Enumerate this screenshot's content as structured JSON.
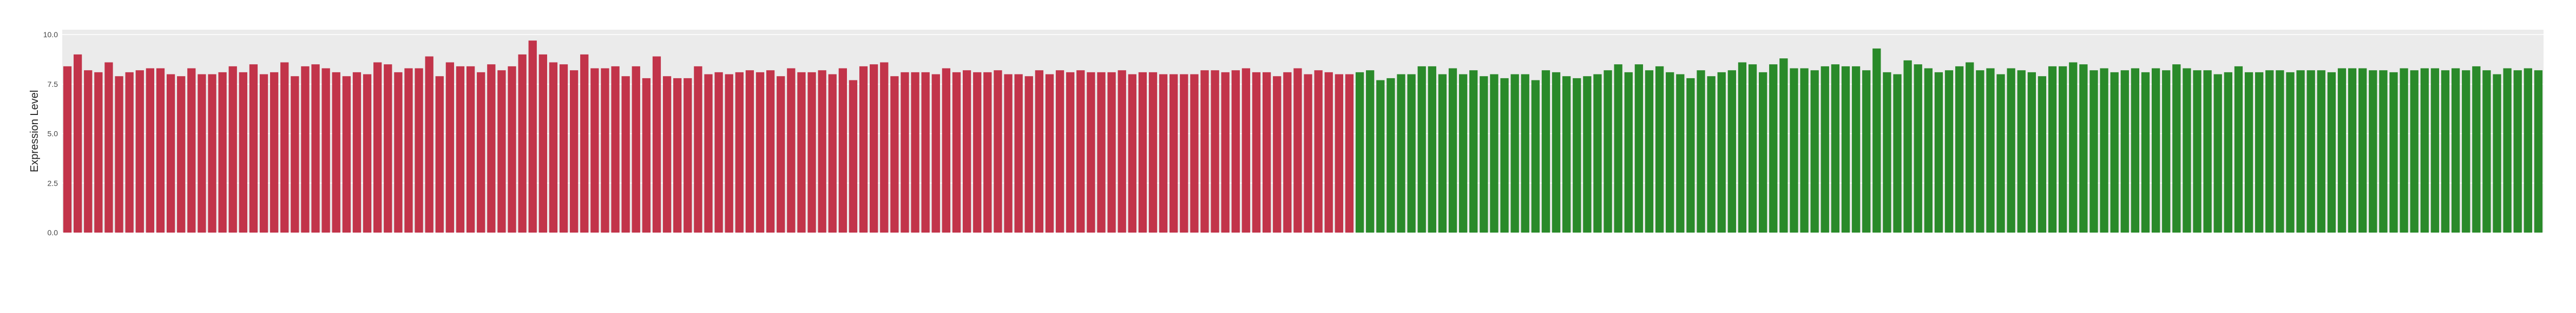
{
  "chart_data": {
    "type": "bar",
    "y_label": "Expression Level",
    "categories": [
      null,
      null,
      null,
      null,
      null,
      null,
      null,
      null,
      null,
      null,
      null,
      null,
      null,
      null,
      null,
      null,
      null,
      null,
      null,
      null,
      null,
      null,
      null,
      null,
      null,
      null,
      null,
      null,
      null,
      null,
      null,
      null,
      null,
      null,
      null,
      null,
      null,
      null,
      null,
      null,
      null,
      null,
      null,
      null,
      null,
      null,
      null,
      null,
      null,
      null,
      null,
      null,
      null,
      null,
      null,
      null,
      null,
      null,
      null,
      null,
      null,
      null,
      null,
      null,
      null,
      null,
      null,
      null,
      null,
      null,
      null,
      null,
      null,
      null,
      null,
      null,
      null,
      null,
      null,
      null,
      null,
      null,
      null,
      null,
      null,
      null,
      null,
      null,
      null,
      null,
      null,
      null,
      null,
      null,
      null,
      null,
      null,
      null,
      null,
      null,
      null,
      null,
      null,
      null,
      null,
      null,
      null,
      null,
      null,
      null,
      null,
      null,
      null,
      null,
      null,
      null,
      null,
      null,
      null,
      null,
      null,
      null,
      null,
      null,
      null,
      null,
      null,
      null,
      null,
      null,
      null,
      null,
      null,
      null,
      null,
      null,
      null,
      null,
      null,
      null,
      null,
      null,
      null,
      null,
      null,
      null,
      null,
      null,
      null,
      null,
      null,
      null,
      null,
      null,
      null,
      null,
      null,
      null,
      null,
      null,
      null,
      null,
      null,
      null,
      null,
      null,
      null,
      null,
      null,
      null,
      null,
      null,
      null,
      null,
      null,
      null,
      null,
      null,
      null,
      null,
      null,
      null,
      null,
      null,
      null,
      null,
      null,
      null,
      null,
      null,
      null,
      null,
      null,
      null,
      null,
      null,
      null,
      null,
      null,
      null,
      null,
      null,
      null,
      null,
      null,
      null,
      null,
      null,
      null,
      null,
      null,
      null,
      null,
      null,
      null,
      null,
      null,
      null,
      null,
      null,
      null,
      null,
      null,
      null,
      null,
      null,
      null,
      null,
      null,
      null,
      null,
      null,
      null,
      null,
      null,
      null,
      null,
      null,
      null,
      null
    ],
    "values": [
      8.4,
      9.0,
      8.2,
      8.1,
      8.6,
      7.9,
      8.1,
      8.2,
      8.3,
      8.3,
      8.0,
      7.9,
      8.3,
      8.0,
      8.0,
      8.1,
      8.4,
      8.1,
      8.5,
      8.0,
      8.1,
      8.6,
      7.9,
      8.4,
      8.5,
      8.3,
      8.1,
      7.9,
      8.1,
      8.0,
      8.6,
      8.5,
      8.1,
      8.3,
      8.3,
      8.9,
      7.9,
      8.6,
      8.4,
      8.4,
      8.1,
      8.5,
      8.2,
      8.4,
      9.0,
      9.7,
      9.0,
      8.6,
      8.5,
      8.2,
      9.0,
      8.3,
      8.3,
      8.4,
      7.9,
      8.4,
      7.8,
      8.9,
      7.9,
      7.8,
      7.8,
      8.4,
      8.0,
      8.1,
      8.0,
      8.1,
      8.2,
      8.1,
      8.2,
      7.9,
      8.3,
      8.1,
      8.1,
      8.2,
      8.0,
      8.3,
      7.7,
      8.4,
      8.5,
      8.6,
      7.9,
      8.1,
      8.1,
      8.1,
      8.0,
      8.3,
      8.1,
      8.2,
      8.1,
      8.1,
      8.2,
      8.0,
      8.0,
      7.9,
      8.2,
      8.0,
      8.2,
      8.1,
      8.2,
      8.1,
      8.1,
      8.1,
      8.2,
      8.0,
      8.1,
      8.1,
      8.0,
      8.0,
      8.0,
      8.0,
      8.2,
      8.2,
      8.1,
      8.2,
      8.3,
      8.1,
      8.1,
      7.9,
      8.1,
      8.3,
      8.0,
      8.2,
      8.1,
      8.0,
      8.0,
      8.1,
      8.2,
      7.7,
      7.8,
      8.0,
      8.0,
      8.4,
      8.4,
      8.0,
      8.3,
      8.0,
      8.2,
      7.9,
      8.0,
      7.8,
      8.0,
      8.0,
      7.7,
      8.2,
      8.1,
      7.9,
      7.8,
      7.9,
      8.0,
      8.2,
      8.5,
      8.1,
      8.5,
      8.2,
      8.4,
      8.1,
      8.0,
      7.8,
      8.2,
      7.9,
      8.1,
      8.2,
      8.6,
      8.5,
      8.1,
      8.5,
      8.8,
      8.3,
      8.3,
      8.2,
      8.4,
      8.5,
      8.4,
      8.4,
      8.2,
      9.3,
      8.1,
      8.0,
      8.7,
      8.5,
      8.3,
      8.1,
      8.2,
      8.4,
      8.6,
      8.2,
      8.3,
      8.0,
      8.3,
      8.2,
      8.1,
      7.9,
      8.4,
      8.4,
      8.6,
      8.5,
      8.2,
      8.3,
      8.1,
      8.2,
      8.3,
      8.1,
      8.3,
      8.2,
      8.5,
      8.3,
      8.2,
      8.2,
      8.0,
      8.1,
      8.4,
      8.1,
      8.1,
      8.2,
      8.2,
      8.1,
      8.2,
      8.2,
      8.2,
      8.1,
      8.3,
      8.3,
      8.3,
      8.2,
      8.2,
      8.1,
      8.3,
      8.2,
      8.3,
      8.3,
      8.2,
      8.3,
      8.2,
      8.4,
      8.2,
      8.0,
      8.3,
      8.2,
      8.3,
      8.2
    ],
    "colors": [
      "#c2344a",
      "#c2344a",
      "#c2344a",
      "#c2344a",
      "#c2344a",
      "#c2344a",
      "#c2344a",
      "#c2344a",
      "#c2344a",
      "#c2344a",
      "#c2344a",
      "#c2344a",
      "#c2344a",
      "#c2344a",
      "#c2344a",
      "#c2344a",
      "#c2344a",
      "#c2344a",
      "#c2344a",
      "#c2344a",
      "#c2344a",
      "#c2344a",
      "#c2344a",
      "#c2344a",
      "#c2344a",
      "#c2344a",
      "#c2344a",
      "#c2344a",
      "#c2344a",
      "#c2344a",
      "#c2344a",
      "#c2344a",
      "#c2344a",
      "#c2344a",
      "#c2344a",
      "#c2344a",
      "#c2344a",
      "#c2344a",
      "#c2344a",
      "#c2344a",
      "#c2344a",
      "#c2344a",
      "#c2344a",
      "#c2344a",
      "#c2344a",
      "#c2344a",
      "#c2344a",
      "#c2344a",
      "#c2344a",
      "#c2344a",
      "#c2344a",
      "#c2344a",
      "#c2344a",
      "#c2344a",
      "#c2344a",
      "#c2344a",
      "#c2344a",
      "#c2344a",
      "#c2344a",
      "#c2344a",
      "#c2344a",
      "#c2344a",
      "#c2344a",
      "#c2344a",
      "#c2344a",
      "#c2344a",
      "#c2344a",
      "#c2344a",
      "#c2344a",
      "#c2344a",
      "#c2344a",
      "#c2344a",
      "#c2344a",
      "#c2344a",
      "#c2344a",
      "#c2344a",
      "#c2344a",
      "#c2344a",
      "#c2344a",
      "#c2344a",
      "#c2344a",
      "#c2344a",
      "#c2344a",
      "#c2344a",
      "#c2344a",
      "#c2344a",
      "#c2344a",
      "#c2344a",
      "#c2344a",
      "#c2344a",
      "#c2344a",
      "#c2344a",
      "#c2344a",
      "#c2344a",
      "#c2344a",
      "#c2344a",
      "#c2344a",
      "#c2344a",
      "#c2344a",
      "#c2344a",
      "#c2344a",
      "#c2344a",
      "#c2344a",
      "#c2344a",
      "#c2344a",
      "#c2344a",
      "#c2344a",
      "#c2344a",
      "#c2344a",
      "#c2344a",
      "#c2344a",
      "#c2344a",
      "#c2344a",
      "#c2344a",
      "#c2344a",
      "#c2344a",
      "#c2344a",
      "#c2344a",
      "#c2344a",
      "#c2344a",
      "#c2344a",
      "#c2344a",
      "#c2344a",
      "#c2344a",
      "#c2344a",
      "#2a8a2a",
      "#2a8a2a",
      "#2a8a2a",
      "#2a8a2a",
      "#2a8a2a",
      "#2a8a2a",
      "#2a8a2a",
      "#2a8a2a",
      "#2a8a2a",
      "#2a8a2a",
      "#2a8a2a",
      "#2a8a2a",
      "#2a8a2a",
      "#2a8a2a",
      "#2a8a2a",
      "#2a8a2a",
      "#2a8a2a",
      "#2a8a2a",
      "#2a8a2a",
      "#2a8a2a",
      "#2a8a2a",
      "#2a8a2a",
      "#2a8a2a",
      "#2a8a2a",
      "#2a8a2a",
      "#2a8a2a",
      "#2a8a2a",
      "#2a8a2a",
      "#2a8a2a",
      "#2a8a2a",
      "#2a8a2a",
      "#2a8a2a",
      "#2a8a2a",
      "#2a8a2a",
      "#2a8a2a",
      "#2a8a2a",
      "#2a8a2a",
      "#2a8a2a",
      "#2a8a2a",
      "#2a8a2a",
      "#2a8a2a",
      "#2a8a2a",
      "#2a8a2a",
      "#2a8a2a",
      "#2a8a2a",
      "#2a8a2a",
      "#2a8a2a",
      "#2a8a2a",
      "#2a8a2a",
      "#2a8a2a",
      "#2a8a2a",
      "#2a8a2a",
      "#2a8a2a",
      "#2a8a2a",
      "#2a8a2a",
      "#2a8a2a",
      "#2a8a2a",
      "#2a8a2a",
      "#2a8a2a",
      "#2a8a2a",
      "#2a8a2a",
      "#2a8a2a",
      "#2a8a2a",
      "#2a8a2a",
      "#2a8a2a",
      "#2a8a2a",
      "#2a8a2a",
      "#2a8a2a",
      "#2a8a2a",
      "#2a8a2a",
      "#2a8a2a",
      "#2a8a2a",
      "#2a8a2a",
      "#2a8a2a",
      "#2a8a2a",
      "#2a8a2a",
      "#2a8a2a",
      "#2a8a2a",
      "#2a8a2a",
      "#2a8a2a",
      "#2a8a2a",
      "#2a8a2a",
      "#2a8a2a",
      "#2a8a2a",
      "#2a8a2a",
      "#2a8a2a",
      "#2a8a2a",
      "#2a8a2a",
      "#2a8a2a",
      "#2a8a2a",
      "#2a8a2a",
      "#2a8a2a",
      "#2a8a2a",
      "#2a8a2a",
      "#2a8a2a",
      "#2a8a2a",
      "#2a8a2a",
      "#2a8a2a",
      "#2a8a2a",
      "#2a8a2a",
      "#2a8a2a",
      "#2a8a2a",
      "#2a8a2a",
      "#2a8a2a",
      "#2a8a2a",
      "#2a8a2a",
      "#2a8a2a",
      "#2a8a2a",
      "#2a8a2a",
      "#2a8a2a",
      "#2a8a2a",
      "#2a8a2a",
      "#2a8a2a",
      "#2a8a2a",
      "#2a8a2a"
    ],
    "ylim": [
      0,
      10.25
    ],
    "yticks": [
      {
        "value": 0,
        "label": "0.0"
      },
      {
        "value": 2.5,
        "label": "2.5"
      },
      {
        "value": 5,
        "label": "5.0"
      },
      {
        "value": 7.5,
        "label": "7.5"
      },
      {
        "value": 10,
        "label": "10.0"
      }
    ],
    "grid": true
  }
}
